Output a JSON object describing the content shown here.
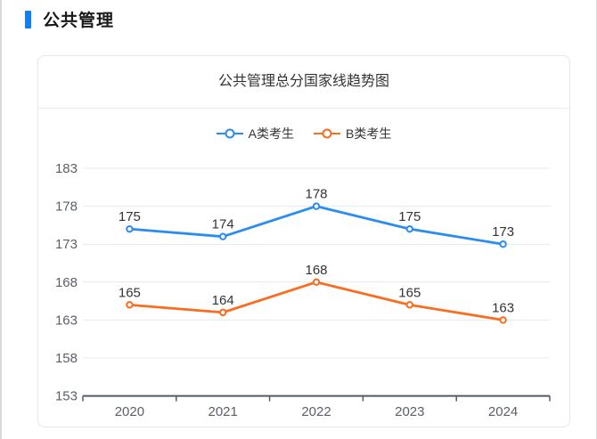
{
  "page": {
    "section_title": "公共管理"
  },
  "card": {
    "title": "公共管理总分国家线趋势图"
  },
  "chart_data": {
    "type": "line",
    "title": "公共管理总分国家线趋势图",
    "categories": [
      "2020",
      "2021",
      "2022",
      "2023",
      "2024"
    ],
    "series": [
      {
        "name": "A类考生",
        "color": "#2b8cf0",
        "values": [
          175,
          174,
          178,
          175,
          173
        ]
      },
      {
        "name": "B类考生",
        "color": "#fa6c20",
        "values": [
          165,
          164,
          168,
          165,
          163
        ]
      }
    ],
    "y_ticks": [
      183,
      178,
      173,
      168,
      163,
      158,
      153
    ],
    "ylim": [
      153,
      183
    ],
    "xlabel": "",
    "ylabel": "",
    "grid": true,
    "data_labels": true,
    "legend_position": "top"
  },
  "colors": {
    "accent_blue": "#0f7ef7",
    "series_a": "#2b8cf0",
    "series_b": "#fa6c20",
    "gridline": "#e5e9f2",
    "axis_line": "#555b63",
    "tick_label": "#5a6069",
    "data_label": "#333333",
    "card_border": "#e6e6e6"
  }
}
